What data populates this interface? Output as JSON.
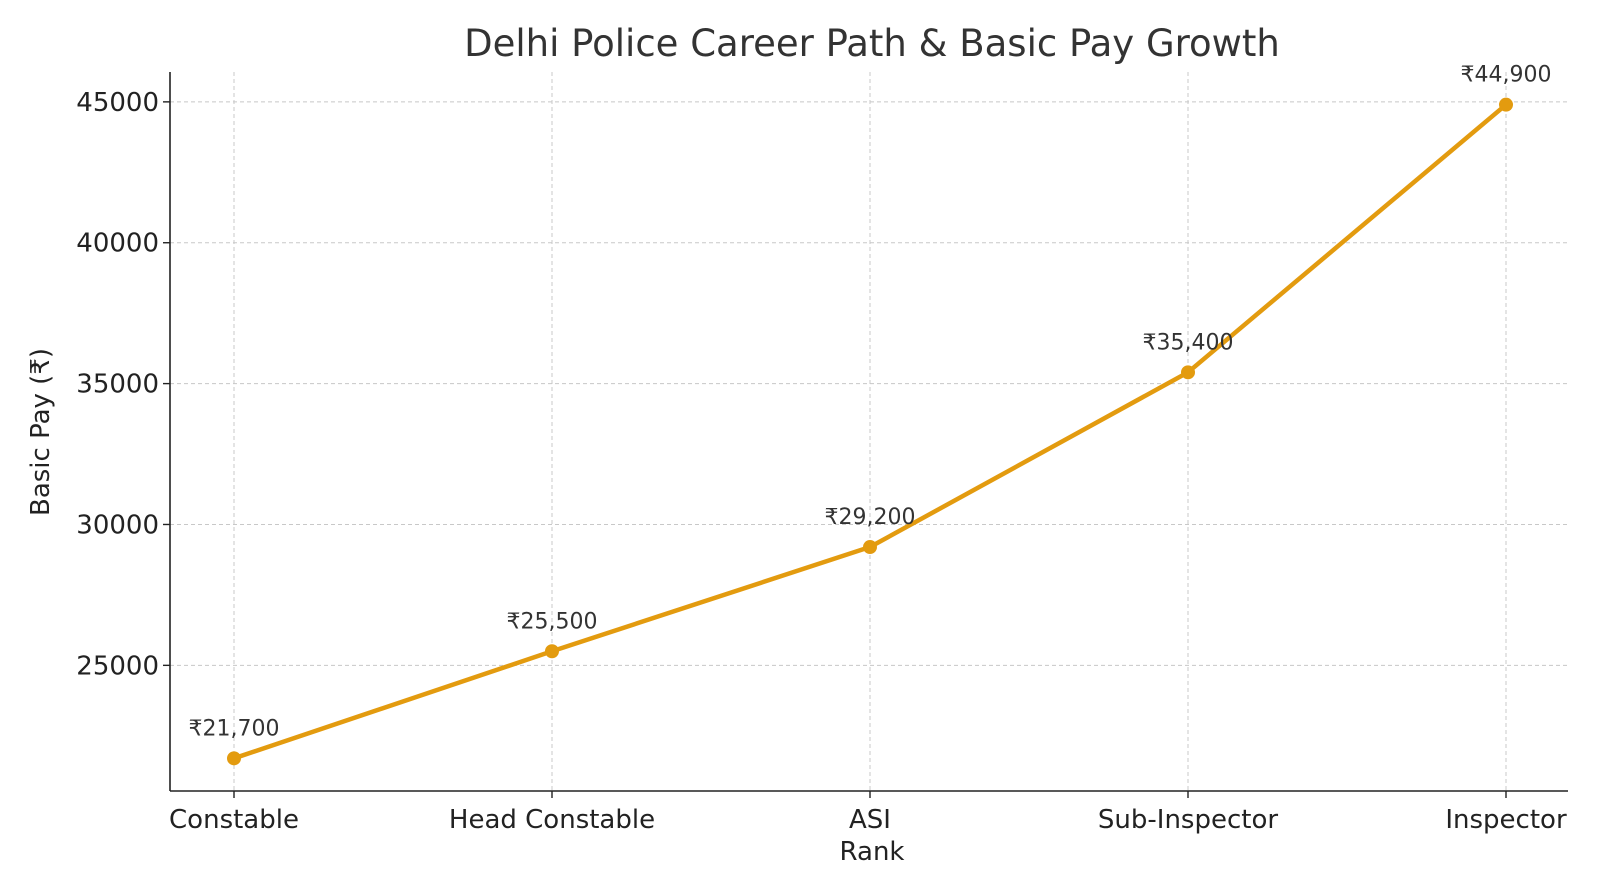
{
  "chart_data": {
    "type": "line",
    "title": "Delhi Police Career Path & Basic Pay Growth",
    "xlabel": "Rank",
    "ylabel": "Basic Pay (₹)",
    "categories": [
      "Constable",
      "Head Constable",
      "ASI",
      "Sub-Inspector",
      "Inspector"
    ],
    "series": [
      {
        "values": [
          21700,
          25500,
          29200,
          35400,
          44900
        ],
        "data_labels": [
          "₹21,700",
          "₹25,500",
          "₹29,200",
          "₹35,400",
          "₹44,900"
        ],
        "color": "#e39b0f",
        "marker": "circle"
      }
    ],
    "yticks": [
      25000,
      30000,
      35000,
      40000,
      45000
    ],
    "ytick_labels": [
      "25000",
      "30000",
      "35000",
      "40000",
      "45000"
    ],
    "ylim": [
      20540,
      46060
    ],
    "grid": true,
    "grid_style": "dashed",
    "legend": false
  }
}
